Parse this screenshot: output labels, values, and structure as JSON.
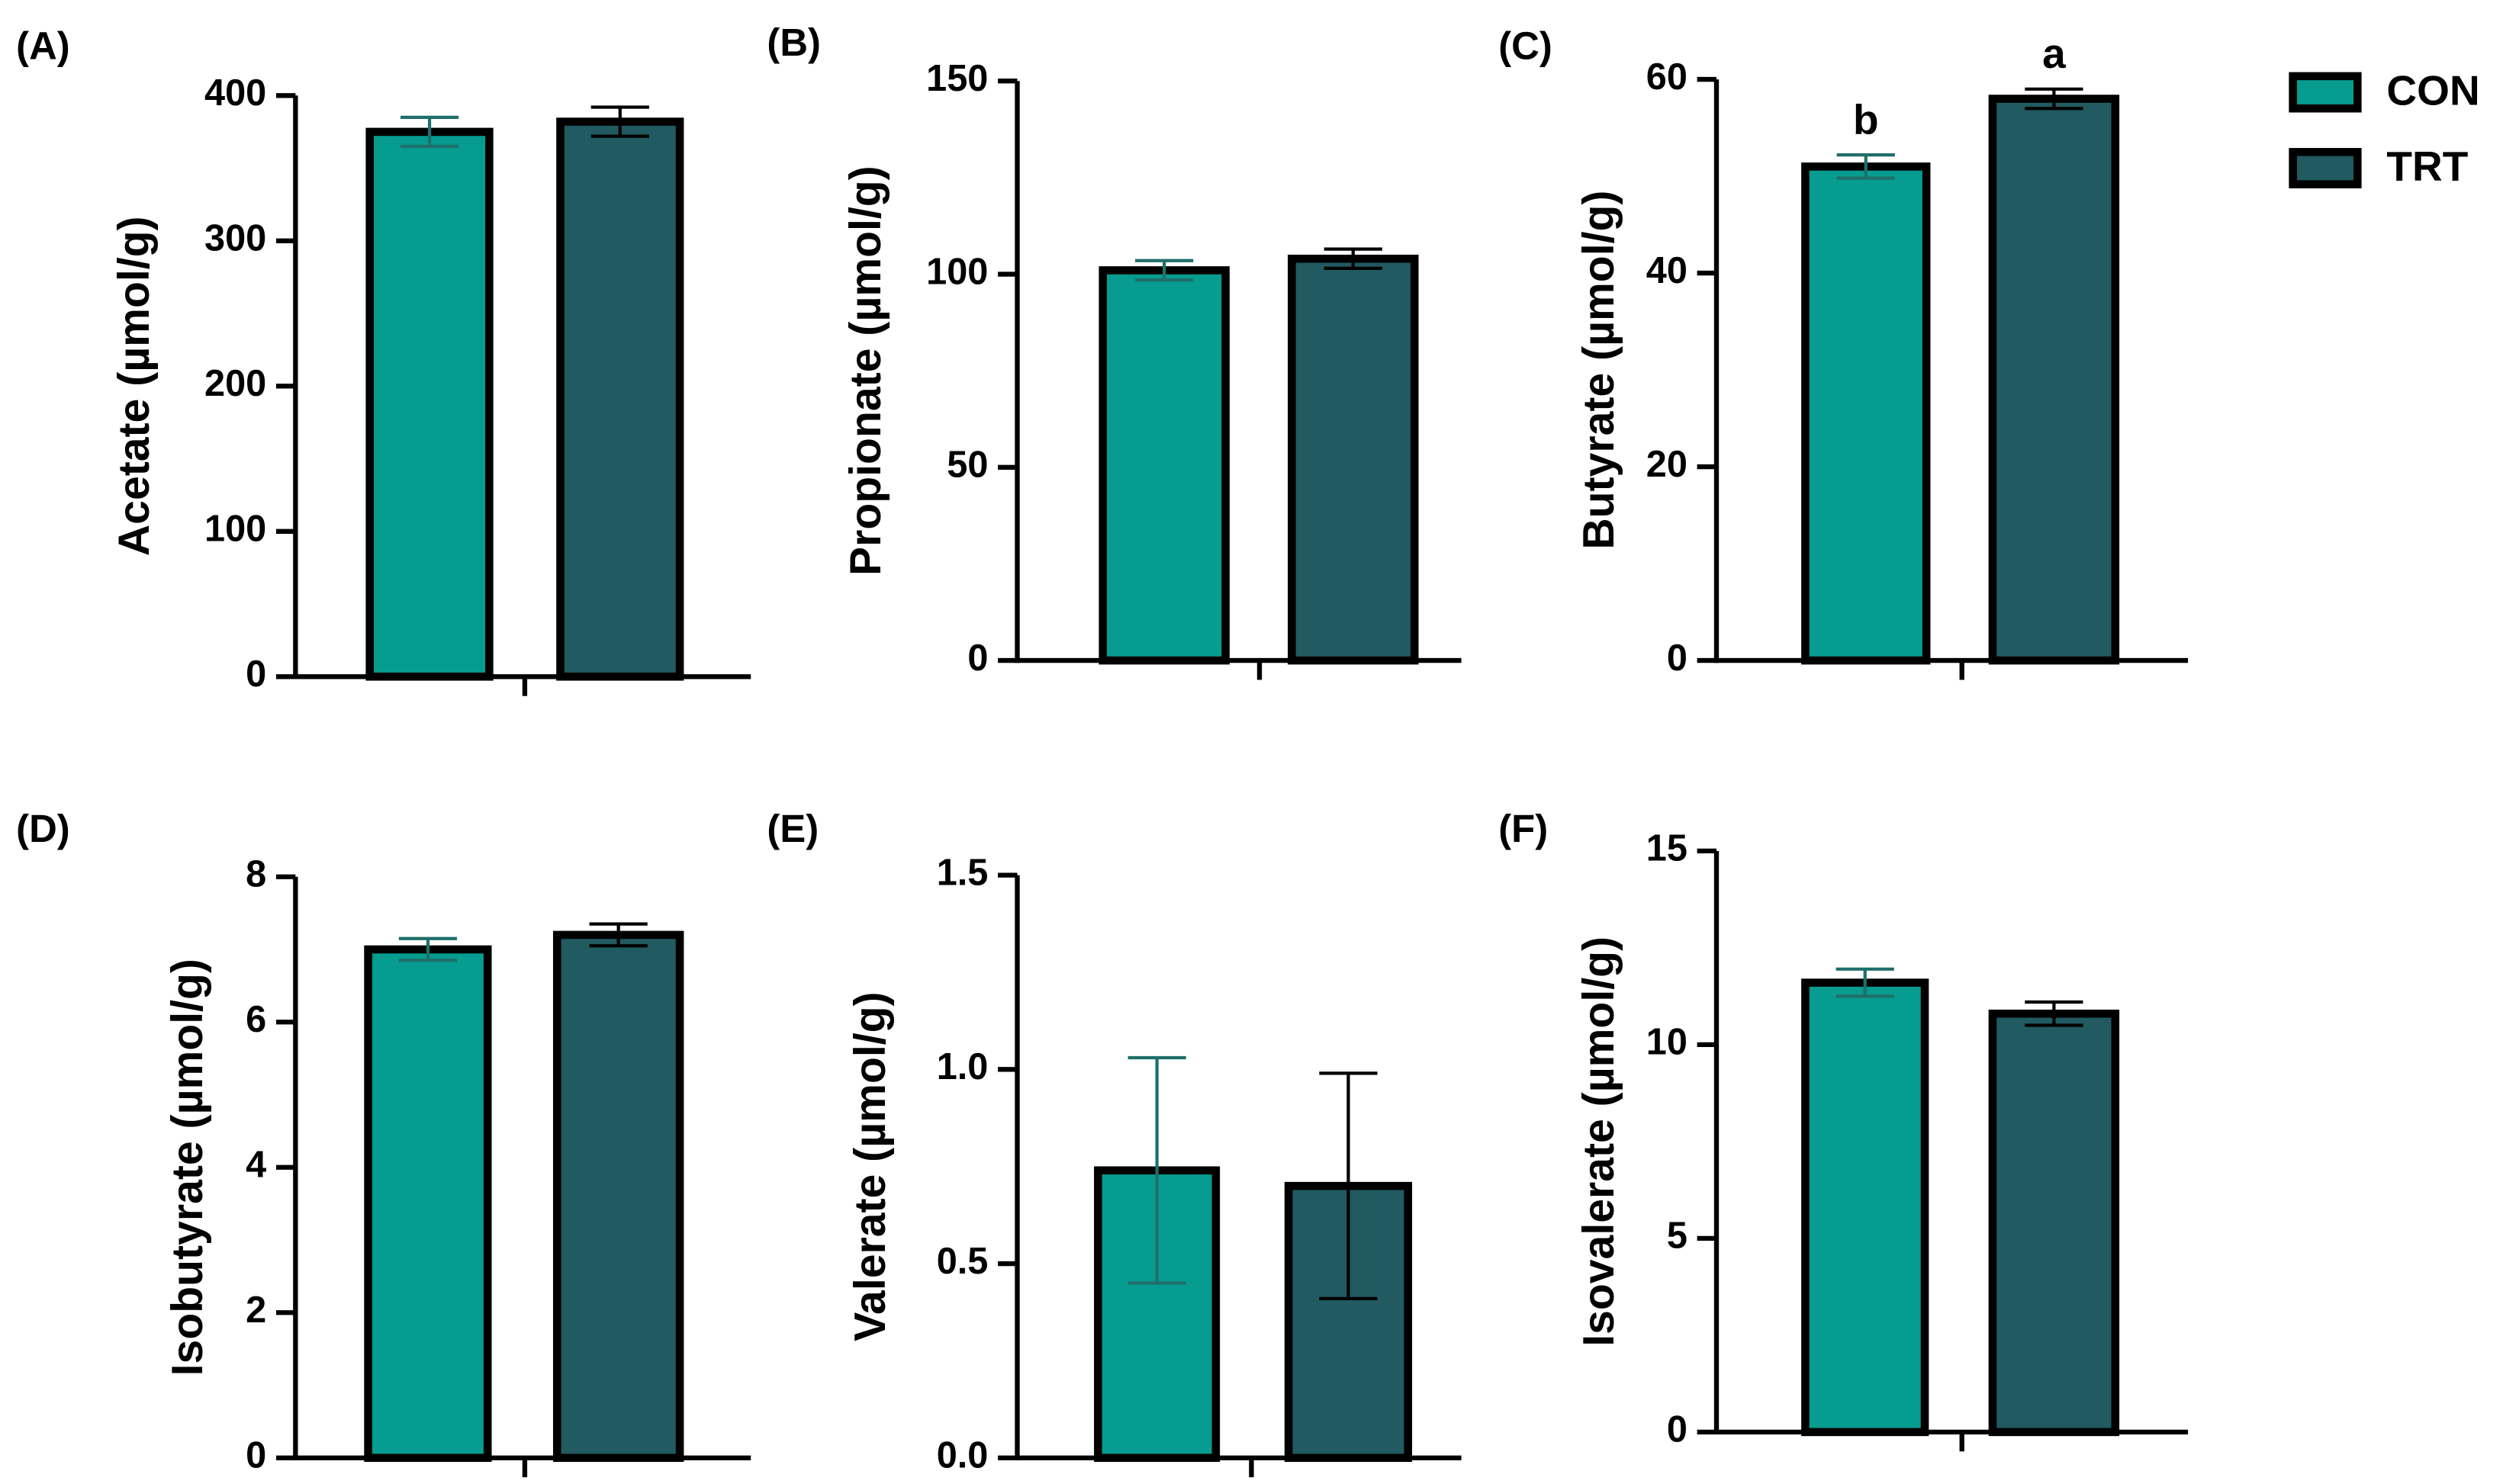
{
  "legend": {
    "series": [
      {
        "name": "CON",
        "color": "#069c8f"
      },
      {
        "name": "TRT",
        "color": "#215a60"
      }
    ]
  },
  "chart_data": [
    {
      "type": "bar",
      "panel": "(A)",
      "ylabel": "Acetate (µmol/g)",
      "values": [
        375,
        382
      ],
      "errors": [
        10,
        10
      ],
      "ylim": [
        0,
        400
      ],
      "yticks": [
        0,
        100,
        200,
        300,
        400
      ]
    },
    {
      "type": "bar",
      "panel": "(B)",
      "ylabel": "Propionate (µmol/g)",
      "values": [
        101,
        104
      ],
      "errors": [
        2.5,
        2.5
      ],
      "ylim": [
        0,
        150
      ],
      "yticks": [
        0,
        50,
        100,
        150
      ]
    },
    {
      "type": "bar",
      "panel": "(C)",
      "ylabel": "Butyrate (µmol/g)",
      "values": [
        51,
        58
      ],
      "errors": [
        1.2,
        1
      ],
      "ylim": [
        0,
        60
      ],
      "yticks": [
        0,
        20,
        40,
        60
      ],
      "annotations": [
        "b",
        "a"
      ]
    },
    {
      "type": "bar",
      "panel": "(D)",
      "ylabel": "Isobutyrate (µmol/g)",
      "values": [
        7.0,
        7.2
      ],
      "errors": [
        0.15,
        0.15
      ],
      "ylim": [
        0,
        8
      ],
      "yticks": [
        0,
        2,
        4,
        6,
        8
      ]
    },
    {
      "type": "bar",
      "panel": "(E)",
      "ylabel": "Valerate (µmol/g)",
      "values": [
        0.74,
        0.7
      ],
      "errors": [
        0.29,
        0.29
      ],
      "ylim": [
        0,
        1.5
      ],
      "yticks": [
        {
          "value": 0,
          "label": "0.0"
        },
        0.5,
        {
          "value": 1,
          "label": "1.0"
        },
        1.5
      ]
    },
    {
      "type": "bar",
      "panel": "(F)",
      "ylabel": "Isovalerate (µmol/g)",
      "values": [
        11.6,
        10.8
      ],
      "errors": [
        0.35,
        0.3
      ],
      "ylim": [
        0,
        15
      ],
      "yticks": [
        0,
        5,
        10,
        15
      ]
    }
  ]
}
